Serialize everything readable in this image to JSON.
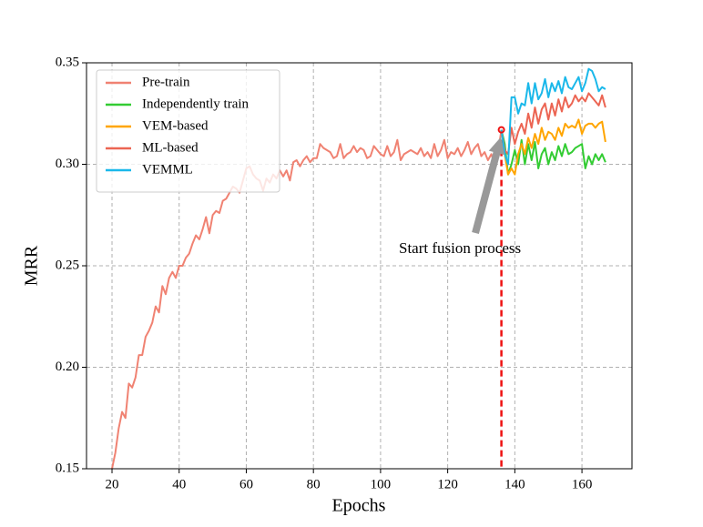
{
  "chart_data": {
    "type": "line",
    "xlabel": "Epochs",
    "ylabel": "MRR",
    "xlim": [
      12.4,
      174.9
    ],
    "ylim": [
      0.15,
      0.35
    ],
    "xticks": [
      20,
      40,
      60,
      80,
      100,
      120,
      140,
      160
    ],
    "yticks": [
      0.15,
      {
        "value": 0.2,
        "label": "0.20"
      },
      0.25,
      {
        "value": 0.3,
        "label": "0.30"
      },
      0.35
    ],
    "grid": true,
    "legend": "upper left",
    "series": [
      {
        "name": "Pre-train",
        "color": "#f08272",
        "x": [
          20,
          21,
          22,
          23,
          24,
          25,
          26,
          27,
          28,
          29,
          30,
          31,
          32,
          33,
          34,
          35,
          36,
          37,
          38,
          39,
          40,
          41,
          42,
          43,
          44,
          45,
          46,
          47,
          48,
          49,
          50,
          51,
          52,
          53,
          54,
          55,
          56,
          57,
          58,
          59,
          60,
          61,
          62,
          63,
          64,
          65,
          66,
          67,
          68,
          69,
          70,
          71,
          72,
          73,
          74,
          75,
          76,
          77,
          78,
          79,
          80,
          81,
          82,
          83,
          84,
          85,
          86,
          87,
          88,
          89,
          90,
          91,
          92,
          93,
          94,
          95,
          96,
          97,
          98,
          99,
          100,
          101,
          102,
          103,
          104,
          105,
          106,
          107,
          108,
          109,
          110,
          111,
          112,
          113,
          114,
          115,
          116,
          117,
          118,
          119,
          120,
          121,
          122,
          123,
          124,
          125,
          126,
          127,
          128,
          129,
          130,
          131,
          132,
          133,
          134,
          135,
          136
        ],
        "values": [
          0.15,
          0.158,
          0.17,
          0.178,
          0.175,
          0.192,
          0.19,
          0.195,
          0.206,
          0.206,
          0.215,
          0.218,
          0.222,
          0.23,
          0.227,
          0.24,
          0.236,
          0.244,
          0.247,
          0.244,
          0.25,
          0.25,
          0.254,
          0.256,
          0.261,
          0.265,
          0.263,
          0.268,
          0.274,
          0.266,
          0.275,
          0.277,
          0.276,
          0.282,
          0.283,
          0.286,
          0.289,
          0.288,
          0.286,
          0.292,
          0.298,
          0.299,
          0.295,
          0.293,
          0.292,
          0.287,
          0.293,
          0.291,
          0.295,
          0.293,
          0.297,
          0.294,
          0.297,
          0.292,
          0.301,
          0.302,
          0.299,
          0.302,
          0.304,
          0.301,
          0.303,
          0.303,
          0.31,
          0.308,
          0.307,
          0.306,
          0.303,
          0.304,
          0.31,
          0.303,
          0.305,
          0.306,
          0.309,
          0.306,
          0.308,
          0.307,
          0.303,
          0.304,
          0.309,
          0.307,
          0.305,
          0.304,
          0.309,
          0.304,
          0.306,
          0.312,
          0.302,
          0.305,
          0.306,
          0.307,
          0.306,
          0.305,
          0.308,
          0.304,
          0.306,
          0.303,
          0.31,
          0.304,
          0.307,
          0.312,
          0.303,
          0.306,
          0.305,
          0.308,
          0.304,
          0.307,
          0.311,
          0.305,
          0.308,
          0.31,
          0.304,
          0.306,
          0.302,
          0.305,
          0.3,
          0.306,
          0.317
        ]
      },
      {
        "name": "Independently train",
        "color": "#33cc33",
        "x": [
          136,
          137,
          138,
          139,
          140,
          141,
          142,
          143,
          144,
          145,
          146,
          147,
          148,
          149,
          150,
          151,
          152,
          153,
          154,
          155,
          156,
          157,
          158,
          159,
          160,
          161,
          162,
          163,
          164,
          165,
          166,
          167
        ],
        "values": [
          0.317,
          0.31,
          0.295,
          0.3,
          0.307,
          0.3,
          0.312,
          0.3,
          0.31,
          0.302,
          0.311,
          0.298,
          0.305,
          0.308,
          0.3,
          0.306,
          0.302,
          0.309,
          0.304,
          0.31,
          0.305,
          0.306,
          0.308,
          0.309,
          0.31,
          0.298,
          0.304,
          0.3,
          0.305,
          0.302,
          0.305,
          0.301
        ]
      },
      {
        "name": "VEM-based",
        "color": "#ffa500",
        "x": [
          136,
          137,
          138,
          139,
          140,
          141,
          142,
          143,
          144,
          145,
          146,
          147,
          148,
          149,
          150,
          151,
          152,
          153,
          154,
          155,
          156,
          157,
          158,
          159,
          160,
          161,
          162,
          163,
          164,
          165,
          166,
          167
        ],
        "values": [
          0.317,
          0.305,
          0.295,
          0.298,
          0.295,
          0.305,
          0.31,
          0.305,
          0.313,
          0.308,
          0.315,
          0.31,
          0.318,
          0.312,
          0.316,
          0.315,
          0.312,
          0.318,
          0.314,
          0.32,
          0.318,
          0.319,
          0.318,
          0.322,
          0.315,
          0.319,
          0.32,
          0.32,
          0.318,
          0.32,
          0.321,
          0.311
        ]
      },
      {
        "name": "ML-based",
        "color": "#ec6553",
        "x": [
          136,
          137,
          138,
          139,
          140,
          141,
          142,
          143,
          144,
          145,
          146,
          147,
          148,
          149,
          150,
          151,
          152,
          153,
          154,
          155,
          156,
          157,
          158,
          159,
          160,
          161,
          162,
          163,
          164,
          165,
          166,
          167
        ],
        "values": [
          0.317,
          0.307,
          0.305,
          0.318,
          0.31,
          0.316,
          0.32,
          0.315,
          0.325,
          0.318,
          0.328,
          0.32,
          0.327,
          0.33,
          0.322,
          0.33,
          0.324,
          0.332,
          0.326,
          0.333,
          0.328,
          0.33,
          0.334,
          0.331,
          0.333,
          0.331,
          0.335,
          0.333,
          0.331,
          0.329,
          0.334,
          0.328
        ]
      },
      {
        "name": "VEMML",
        "color": "#1ab8ea",
        "x": [
          136,
          137,
          138,
          139,
          140,
          141,
          142,
          143,
          144,
          145,
          146,
          147,
          148,
          149,
          150,
          151,
          152,
          153,
          154,
          155,
          156,
          157,
          158,
          159,
          160,
          161,
          162,
          163,
          164,
          165,
          166,
          167
        ],
        "values": [
          0.317,
          0.305,
          0.3,
          0.333,
          0.333,
          0.325,
          0.33,
          0.329,
          0.34,
          0.33,
          0.34,
          0.332,
          0.335,
          0.342,
          0.333,
          0.34,
          0.336,
          0.341,
          0.335,
          0.343,
          0.338,
          0.337,
          0.34,
          0.343,
          0.336,
          0.34,
          0.347,
          0.346,
          0.342,
          0.336,
          0.338,
          0.337
        ]
      }
    ],
    "annotation": {
      "text": "Start fusion process",
      "x": 136,
      "y": 0.317,
      "color": "#ee1111"
    }
  }
}
